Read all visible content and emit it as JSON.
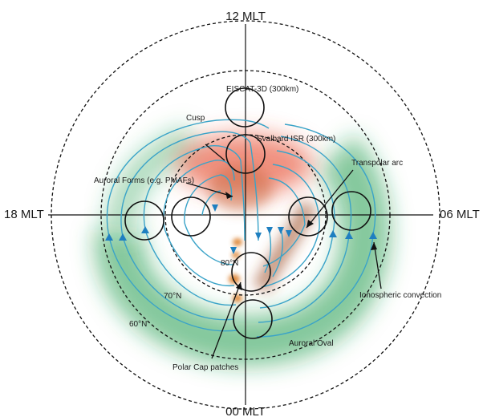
{
  "labels": {
    "mlt_top": "12 MLT",
    "mlt_bottom": "00 MLT",
    "mlt_left": "18 MLT",
    "mlt_right": "06 MLT",
    "eiscat": "EISCAT-3D (300km)",
    "cusp": "Cusp",
    "svalbard": "Svalbard ISR (300km)",
    "auroral_forms": "Auroral Forms (e.g. PMAFs)",
    "transpolar": "Transpolar arc",
    "lat80": "80°N",
    "lat70": "70°N",
    "lat60": "60°N",
    "ionospheric": "Ionospheric convection",
    "auroral_oval": "Auroral Oval",
    "polar_cap": "Polar Cap patches"
  },
  "colors": {
    "convection": "#3aa3c8",
    "arrow": "#1f7fc0",
    "oval_green": "#1f9a4a",
    "cusp_red": "#e8553a",
    "patch_orange": "#e08a3c",
    "arc_brown": "#a0522d"
  }
}
